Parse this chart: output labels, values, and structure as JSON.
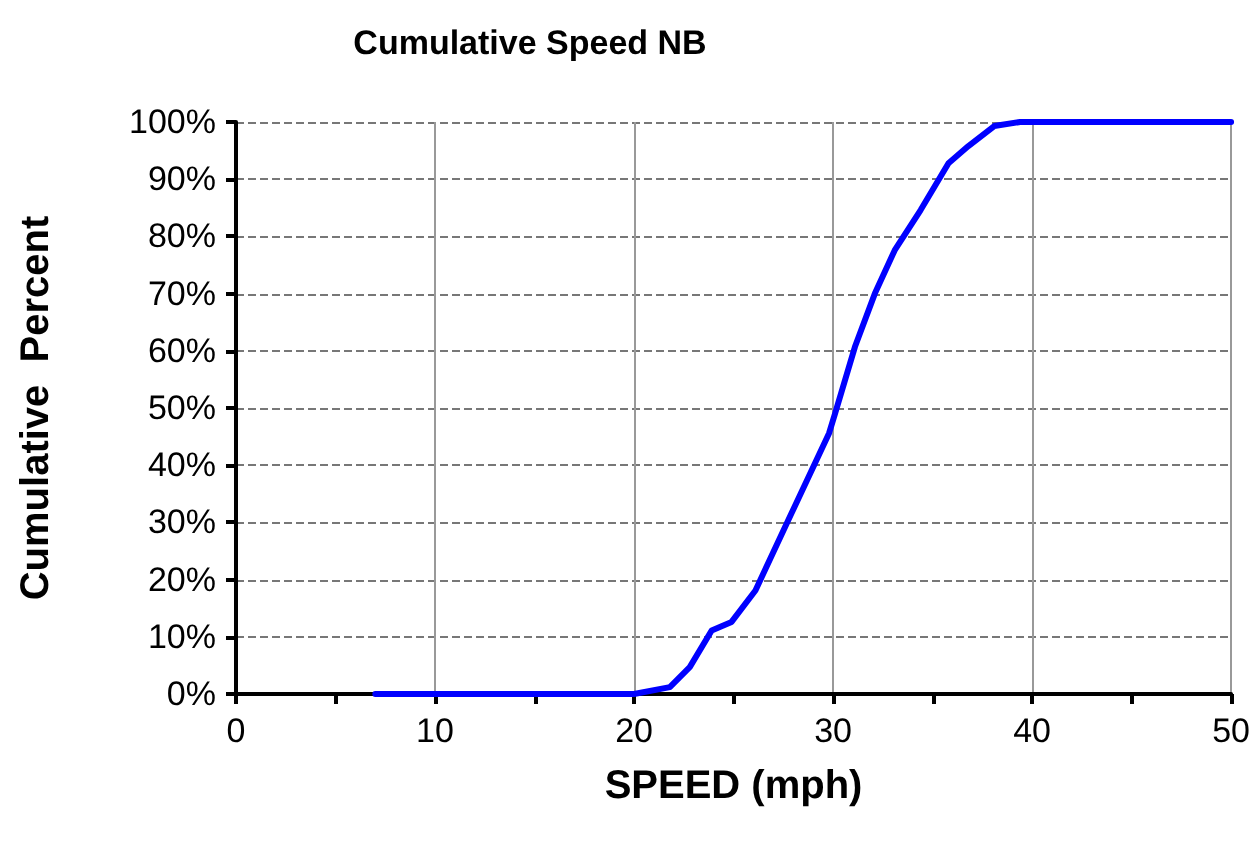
{
  "chart_data": {
    "type": "line",
    "title": "Cumulative Speed NB",
    "xlabel": "SPEED (mph)",
    "ylabel": "Cumulative  Percent",
    "series": [
      {
        "color": "#0000ff",
        "x": [
          7,
          20,
          21.8,
          22.8,
          23.9,
          24.9,
          26.1,
          27.9,
          29.8,
          30.1,
          31.1,
          32.1,
          33.1,
          34.4,
          35.8,
          36.8,
          38.1,
          39.4,
          50
        ],
        "values": [
          0,
          0,
          1.2,
          4.7,
          11.1,
          12.6,
          18.1,
          31.5,
          45.6,
          49,
          60.7,
          70,
          77.6,
          84.6,
          92.8,
          95.8,
          99.3,
          100,
          100
        ]
      }
    ],
    "xlim": [
      0,
      50
    ],
    "xticks": [
      0,
      10,
      20,
      30,
      40,
      50
    ],
    "ylim": [
      0,
      100
    ],
    "yticks": [
      {
        "value": 0,
        "label": "0%"
      },
      {
        "value": 10,
        "label": "10%"
      },
      {
        "value": 20,
        "label": "20%"
      },
      {
        "value": 30,
        "label": "30%"
      },
      {
        "value": 40,
        "label": "40%"
      },
      {
        "value": 50,
        "label": "50%"
      },
      {
        "value": 60,
        "label": "60%"
      },
      {
        "value": 70,
        "label": "70%"
      },
      {
        "value": 80,
        "label": "80%"
      },
      {
        "value": 90,
        "label": "90%"
      },
      {
        "value": 100,
        "label": "100%"
      }
    ],
    "grid": true,
    "marker": "none",
    "line_style": "solid"
  }
}
